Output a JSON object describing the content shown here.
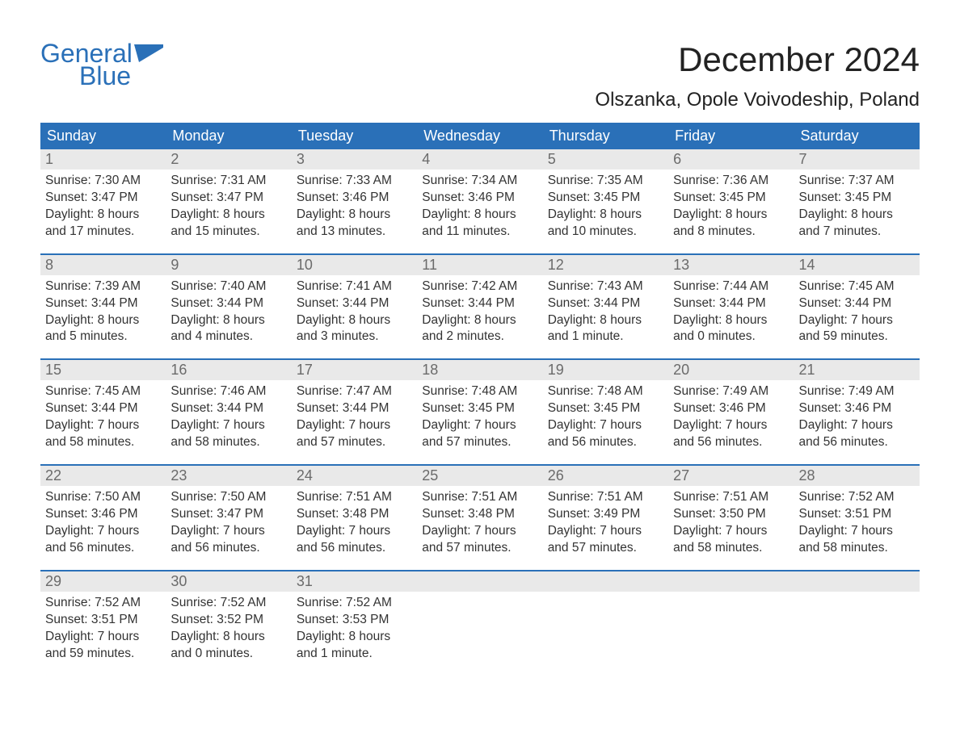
{
  "brand": {
    "word1": "General",
    "word2": "Blue",
    "color": "#2a70b8"
  },
  "title": "December 2024",
  "location": "Olszanka, Opole Voivodeship, Poland",
  "colors": {
    "header_bg": "#2a70b8",
    "header_text": "#ffffff",
    "daynum_bg": "#e9e9e9",
    "daynum_text": "#6b6b6b",
    "body_text": "#333333",
    "week_divider": "#2a70b8",
    "page_bg": "#ffffff"
  },
  "fonts": {
    "title_size_pt": 32,
    "location_size_pt": 18,
    "dayhead_size_pt": 14,
    "body_size_pt": 12
  },
  "day_headers": [
    "Sunday",
    "Monday",
    "Tuesday",
    "Wednesday",
    "Thursday",
    "Friday",
    "Saturday"
  ],
  "weeks": [
    [
      {
        "n": "1",
        "sr": "Sunrise: 7:30 AM",
        "ss": "Sunset: 3:47 PM",
        "d1": "Daylight: 8 hours",
        "d2": "and 17 minutes."
      },
      {
        "n": "2",
        "sr": "Sunrise: 7:31 AM",
        "ss": "Sunset: 3:47 PM",
        "d1": "Daylight: 8 hours",
        "d2": "and 15 minutes."
      },
      {
        "n": "3",
        "sr": "Sunrise: 7:33 AM",
        "ss": "Sunset: 3:46 PM",
        "d1": "Daylight: 8 hours",
        "d2": "and 13 minutes."
      },
      {
        "n": "4",
        "sr": "Sunrise: 7:34 AM",
        "ss": "Sunset: 3:46 PM",
        "d1": "Daylight: 8 hours",
        "d2": "and 11 minutes."
      },
      {
        "n": "5",
        "sr": "Sunrise: 7:35 AM",
        "ss": "Sunset: 3:45 PM",
        "d1": "Daylight: 8 hours",
        "d2": "and 10 minutes."
      },
      {
        "n": "6",
        "sr": "Sunrise: 7:36 AM",
        "ss": "Sunset: 3:45 PM",
        "d1": "Daylight: 8 hours",
        "d2": "and 8 minutes."
      },
      {
        "n": "7",
        "sr": "Sunrise: 7:37 AM",
        "ss": "Sunset: 3:45 PM",
        "d1": "Daylight: 8 hours",
        "d2": "and 7 minutes."
      }
    ],
    [
      {
        "n": "8",
        "sr": "Sunrise: 7:39 AM",
        "ss": "Sunset: 3:44 PM",
        "d1": "Daylight: 8 hours",
        "d2": "and 5 minutes."
      },
      {
        "n": "9",
        "sr": "Sunrise: 7:40 AM",
        "ss": "Sunset: 3:44 PM",
        "d1": "Daylight: 8 hours",
        "d2": "and 4 minutes."
      },
      {
        "n": "10",
        "sr": "Sunrise: 7:41 AM",
        "ss": "Sunset: 3:44 PM",
        "d1": "Daylight: 8 hours",
        "d2": "and 3 minutes."
      },
      {
        "n": "11",
        "sr": "Sunrise: 7:42 AM",
        "ss": "Sunset: 3:44 PM",
        "d1": "Daylight: 8 hours",
        "d2": "and 2 minutes."
      },
      {
        "n": "12",
        "sr": "Sunrise: 7:43 AM",
        "ss": "Sunset: 3:44 PM",
        "d1": "Daylight: 8 hours",
        "d2": "and 1 minute."
      },
      {
        "n": "13",
        "sr": "Sunrise: 7:44 AM",
        "ss": "Sunset: 3:44 PM",
        "d1": "Daylight: 8 hours",
        "d2": "and 0 minutes."
      },
      {
        "n": "14",
        "sr": "Sunrise: 7:45 AM",
        "ss": "Sunset: 3:44 PM",
        "d1": "Daylight: 7 hours",
        "d2": "and 59 minutes."
      }
    ],
    [
      {
        "n": "15",
        "sr": "Sunrise: 7:45 AM",
        "ss": "Sunset: 3:44 PM",
        "d1": "Daylight: 7 hours",
        "d2": "and 58 minutes."
      },
      {
        "n": "16",
        "sr": "Sunrise: 7:46 AM",
        "ss": "Sunset: 3:44 PM",
        "d1": "Daylight: 7 hours",
        "d2": "and 58 minutes."
      },
      {
        "n": "17",
        "sr": "Sunrise: 7:47 AM",
        "ss": "Sunset: 3:44 PM",
        "d1": "Daylight: 7 hours",
        "d2": "and 57 minutes."
      },
      {
        "n": "18",
        "sr": "Sunrise: 7:48 AM",
        "ss": "Sunset: 3:45 PM",
        "d1": "Daylight: 7 hours",
        "d2": "and 57 minutes."
      },
      {
        "n": "19",
        "sr": "Sunrise: 7:48 AM",
        "ss": "Sunset: 3:45 PM",
        "d1": "Daylight: 7 hours",
        "d2": "and 56 minutes."
      },
      {
        "n": "20",
        "sr": "Sunrise: 7:49 AM",
        "ss": "Sunset: 3:46 PM",
        "d1": "Daylight: 7 hours",
        "d2": "and 56 minutes."
      },
      {
        "n": "21",
        "sr": "Sunrise: 7:49 AM",
        "ss": "Sunset: 3:46 PM",
        "d1": "Daylight: 7 hours",
        "d2": "and 56 minutes."
      }
    ],
    [
      {
        "n": "22",
        "sr": "Sunrise: 7:50 AM",
        "ss": "Sunset: 3:46 PM",
        "d1": "Daylight: 7 hours",
        "d2": "and 56 minutes."
      },
      {
        "n": "23",
        "sr": "Sunrise: 7:50 AM",
        "ss": "Sunset: 3:47 PM",
        "d1": "Daylight: 7 hours",
        "d2": "and 56 minutes."
      },
      {
        "n": "24",
        "sr": "Sunrise: 7:51 AM",
        "ss": "Sunset: 3:48 PM",
        "d1": "Daylight: 7 hours",
        "d2": "and 56 minutes."
      },
      {
        "n": "25",
        "sr": "Sunrise: 7:51 AM",
        "ss": "Sunset: 3:48 PM",
        "d1": "Daylight: 7 hours",
        "d2": "and 57 minutes."
      },
      {
        "n": "26",
        "sr": "Sunrise: 7:51 AM",
        "ss": "Sunset: 3:49 PM",
        "d1": "Daylight: 7 hours",
        "d2": "and 57 minutes."
      },
      {
        "n": "27",
        "sr": "Sunrise: 7:51 AM",
        "ss": "Sunset: 3:50 PM",
        "d1": "Daylight: 7 hours",
        "d2": "and 58 minutes."
      },
      {
        "n": "28",
        "sr": "Sunrise: 7:52 AM",
        "ss": "Sunset: 3:51 PM",
        "d1": "Daylight: 7 hours",
        "d2": "and 58 minutes."
      }
    ],
    [
      {
        "n": "29",
        "sr": "Sunrise: 7:52 AM",
        "ss": "Sunset: 3:51 PM",
        "d1": "Daylight: 7 hours",
        "d2": "and 59 minutes."
      },
      {
        "n": "30",
        "sr": "Sunrise: 7:52 AM",
        "ss": "Sunset: 3:52 PM",
        "d1": "Daylight: 8 hours",
        "d2": "and 0 minutes."
      },
      {
        "n": "31",
        "sr": "Sunrise: 7:52 AM",
        "ss": "Sunset: 3:53 PM",
        "d1": "Daylight: 8 hours",
        "d2": "and 1 minute."
      },
      null,
      null,
      null,
      null
    ]
  ]
}
